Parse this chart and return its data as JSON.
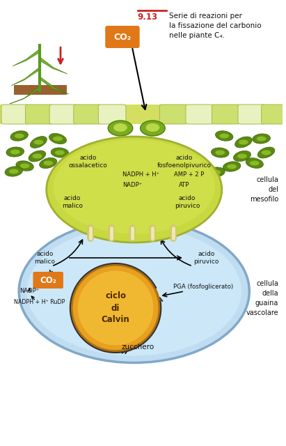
{
  "title_num": "9.13",
  "title_text": "Serie di reazioni per\nla fissazione del carbonio\nnelle piante C₄.",
  "co2_label": "CO₂",
  "mesofilo_cell_label": "cellula\ndel\nmesofilo",
  "guaina_cell_label": "cellula\ndella\nguaina\nvascolare",
  "mesofilo": {
    "ossalacetico": "acido\nossalacetico",
    "fosfoenol": "acido\nfosfoenolpivurico",
    "nadph": "NADPH + H⁺",
    "nadp": "NADP⁺",
    "amp": "AMP + 2 P",
    "atp": "ATP",
    "malico": "acido\nmalico",
    "piruvico": "acido\npiruvico"
  },
  "guaina": {
    "malico": "acido\nmalico",
    "piruvico": "acido\npiruvico",
    "co2": "CO₂",
    "nadp": "NADP⁺",
    "nadph_rudp": "NADPH + H⁺ RuDP",
    "pga": "PGA (fosfoglicerato)",
    "calvin": "ciclo\ndi\nCalvin",
    "sugar": "zucchero"
  },
  "colors": {
    "bg": "#ffffff",
    "leaf_top": "#d4de60",
    "mesofilo_fill": "#c8d840",
    "mesofilo_edge": "#a0b030",
    "guaina_fill": "#c0dcf0",
    "guaina_edge": "#80a8c8",
    "calvin_fill": "#e8a020",
    "calvin_edge": "#b07010",
    "co2_box": "#e07818",
    "plant_green": "#6aaa20",
    "chloroplast": "#5a8a10",
    "chloroplast_inner": "#8ab828",
    "arrow": "#222222",
    "fig_num": "#cc2222",
    "text": "#111111",
    "soil": "#9a6030",
    "stem": "#5a9a20",
    "plasmo": "#d0c870",
    "cell_light": "#e8f2c0",
    "cell_med": "#cce070",
    "guard_cell": "#7aaa20"
  }
}
